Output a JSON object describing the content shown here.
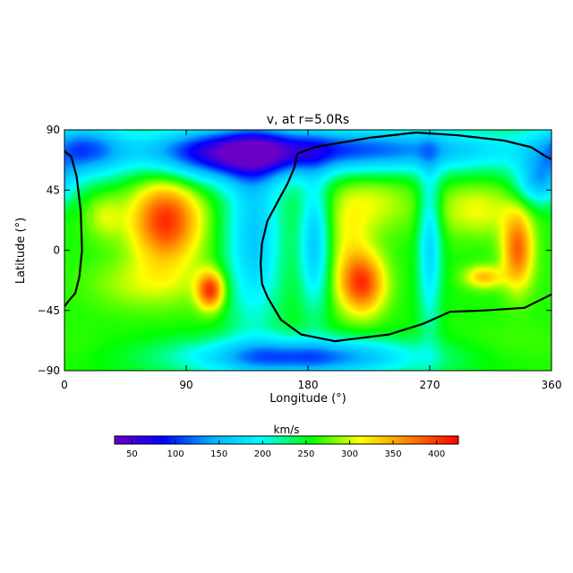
{
  "chart_data": {
    "type": "heatmap",
    "title": "v, at r=5.0Rs",
    "xlabel": "Longitude (°)",
    "ylabel": "Latitude (°)",
    "xlim": [
      0,
      360
    ],
    "ylim": [
      -90,
      90
    ],
    "x_ticks": [
      0,
      90,
      180,
      270,
      360
    ],
    "y_ticks": [
      90,
      45,
      0,
      -45,
      -90
    ],
    "x_tick_labels": [
      "0",
      "90",
      "180",
      "270",
      "360"
    ],
    "y_tick_labels": [
      "90",
      "45",
      "0",
      "−45",
      "−90"
    ],
    "grid": false,
    "colorbar": {
      "label": "km/s",
      "orientation": "horizontal",
      "placement": "bottom",
      "range": [
        30,
        425
      ],
      "ticks": [
        50,
        100,
        150,
        200,
        250,
        300,
        350,
        400
      ],
      "tick_labels": [
        "50",
        "100",
        "150",
        "200",
        "250",
        "300",
        "350",
        "400"
      ],
      "colormap": [
        "#6a00c8",
        "#0000ff",
        "#00b4ff",
        "#00ffff",
        "#00ff00",
        "#ffff00",
        "#ff8000",
        "#ff0000"
      ]
    },
    "background_value": 260,
    "features": [
      {
        "lon": 75,
        "lat": 22,
        "value": 405,
        "spread_lon": 18,
        "spread_lat": 22
      },
      {
        "lon": 62,
        "lat": -25,
        "value": 300,
        "spread_lon": 30,
        "spread_lat": 14
      },
      {
        "lon": 108,
        "lat": -30,
        "value": 400,
        "spread_lon": 7,
        "spread_lat": 10
      },
      {
        "lon": 220,
        "lat": -25,
        "value": 395,
        "spread_lon": 12,
        "spread_lat": 16
      },
      {
        "lon": 230,
        "lat": 35,
        "value": 300,
        "spread_lon": 20,
        "spread_lat": 16
      },
      {
        "lon": 210,
        "lat": 10,
        "value": 300,
        "spread_lon": 12,
        "spread_lat": 25
      },
      {
        "lon": 305,
        "lat": 30,
        "value": 310,
        "spread_lon": 22,
        "spread_lat": 14
      },
      {
        "lon": 335,
        "lat": 0,
        "value": 380,
        "spread_lon": 8,
        "spread_lat": 20
      },
      {
        "lon": 310,
        "lat": -20,
        "value": 340,
        "spread_lon": 10,
        "spread_lat": 6
      },
      {
        "lon": 30,
        "lat": 25,
        "value": 300,
        "spread_lon": 10,
        "spread_lat": 12
      },
      {
        "lon": 330,
        "lat": -70,
        "value": 270,
        "spread_lon": 40,
        "spread_lat": 12
      },
      {
        "lon": 200,
        "lat": 75,
        "value": 110,
        "spread_lon": 100,
        "spread_lat": 12
      },
      {
        "lon": 175,
        "lat": -80,
        "value": 110,
        "spread_lon": 60,
        "spread_lat": 10
      },
      {
        "lon": 140,
        "lat": 10,
        "value": 160,
        "spread_lon": 15,
        "spread_lat": 50
      },
      {
        "lon": 120,
        "lat": 70,
        "value": 140,
        "spread_lon": 40,
        "spread_lat": 15
      },
      {
        "lon": 15,
        "lat": 75,
        "value": 140,
        "spread_lon": 20,
        "spread_lat": 15
      },
      {
        "lon": 270,
        "lat": 5,
        "value": 170,
        "spread_lon": 6,
        "spread_lat": 45
      },
      {
        "lon": 185,
        "lat": 5,
        "value": 160,
        "spread_lon": 8,
        "spread_lat": 35
      },
      {
        "lon": 350,
        "lat": 50,
        "value": 160,
        "spread_lon": 12,
        "spread_lat": 12
      }
    ],
    "neutral_line": [
      [
        0,
        74
      ],
      [
        5,
        70
      ],
      [
        9,
        55
      ],
      [
        12,
        30
      ],
      [
        13,
        0
      ],
      [
        11,
        -20
      ],
      [
        8,
        -32
      ],
      [
        3,
        -38
      ],
      [
        0,
        -42
      ],
      [
        360,
        -33
      ],
      [
        340,
        -43
      ],
      [
        310,
        -45
      ],
      [
        285,
        -46
      ],
      [
        265,
        -55
      ],
      [
        240,
        -63
      ],
      [
        200,
        -68
      ],
      [
        175,
        -63
      ],
      [
        160,
        -52
      ],
      [
        150,
        -35
      ],
      [
        146,
        -25
      ],
      [
        145,
        -10
      ],
      [
        146,
        5
      ],
      [
        150,
        22
      ],
      [
        158,
        37
      ],
      [
        165,
        50
      ],
      [
        170,
        62
      ],
      [
        172,
        72
      ],
      [
        185,
        77
      ],
      [
        225,
        84
      ],
      [
        260,
        88
      ],
      [
        290,
        86
      ],
      [
        325,
        82
      ],
      [
        345,
        77
      ],
      [
        356,
        70
      ],
      [
        360,
        68
      ]
    ]
  }
}
